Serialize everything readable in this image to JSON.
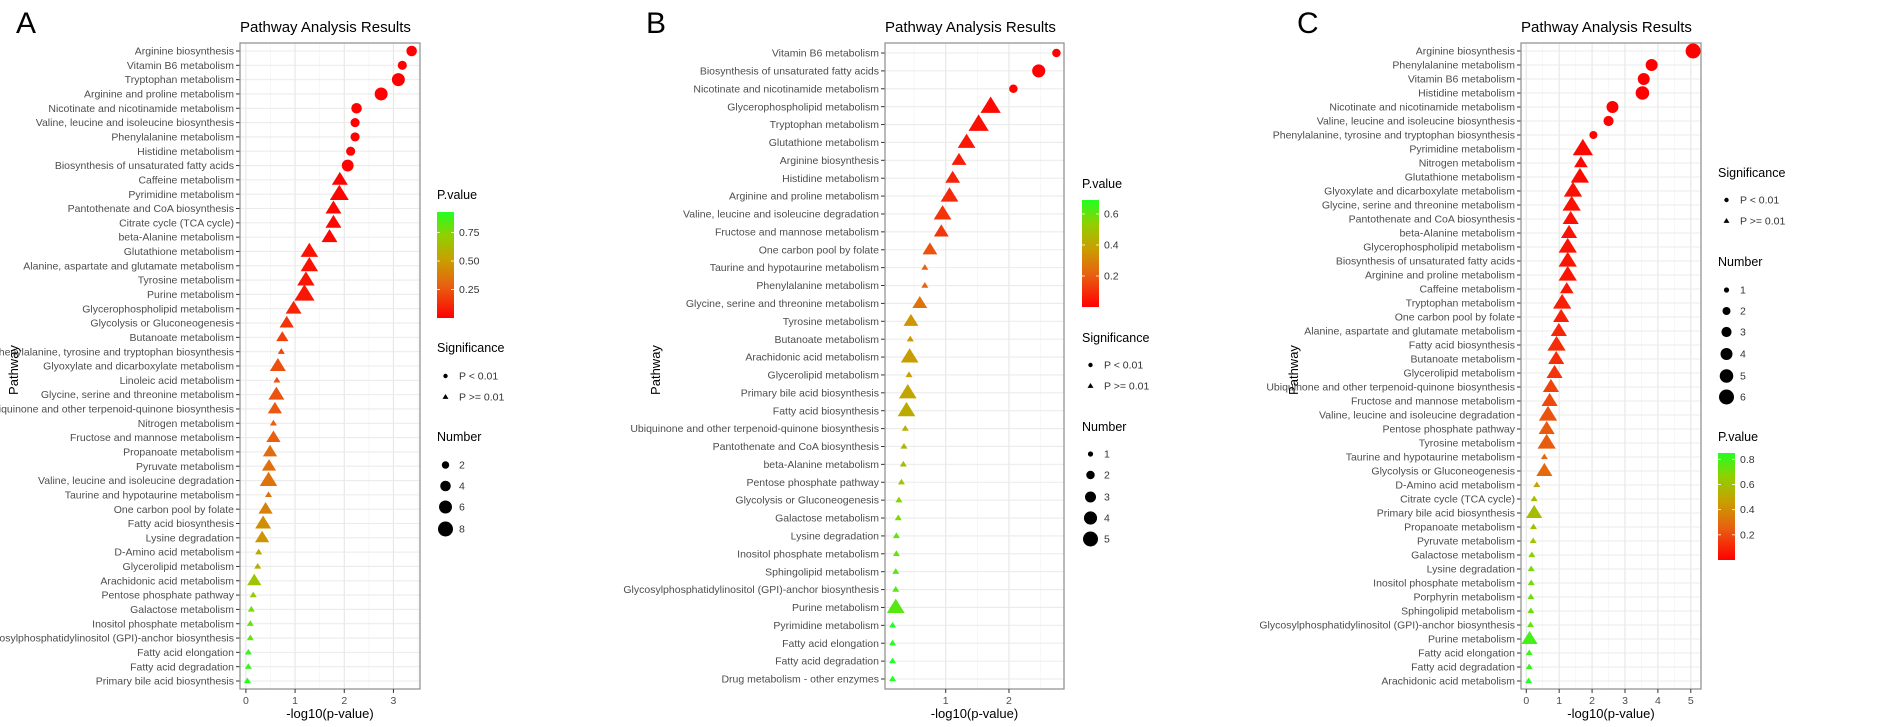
{
  "chart_data": [
    {
      "panel_label": "A",
      "type": "scatter",
      "title": "Pathway Analysis Results",
      "xlabel": "-log10(p-value)",
      "ylabel": "Pathway",
      "xlim": [
        -0.12,
        3.54
      ],
      "xticks": [
        "0",
        "1",
        "2",
        "3"
      ],
      "grid": true,
      "legend": {
        "pvalue_title": "P.value",
        "pvalue_ticks": [
          "0.75",
          "0.50",
          "0.25"
        ],
        "pvalue_tick_values": [
          0.75,
          0.5,
          0.25
        ],
        "pvalue_range": [
          0,
          0.93
        ],
        "significance_title": "Significance",
        "significance_labels": [
          "P < 0.01",
          "P >= 0.01"
        ],
        "number_title": "Number",
        "number_labels": [
          "2",
          "4",
          "6",
          "8"
        ],
        "number_values": [
          2,
          4,
          6,
          8
        ],
        "order": [
          "pvalue",
          "significance",
          "number"
        ]
      },
      "points": [
        {
          "pathway": "Arginine biosynthesis",
          "neglog10p": 3.37,
          "number": 4
        },
        {
          "pathway": "Vitamin B6 metabolism",
          "neglog10p": 3.18,
          "number": 3
        },
        {
          "pathway": "Tryptophan metabolism",
          "neglog10p": 3.1,
          "number": 6
        },
        {
          "pathway": "Arginine and proline metabolism",
          "neglog10p": 2.75,
          "number": 6
        },
        {
          "pathway": "Nicotinate and nicotinamide metabolism",
          "neglog10p": 2.25,
          "number": 4
        },
        {
          "pathway": "Valine, leucine and isoleucine biosynthesis",
          "neglog10p": 2.22,
          "number": 3
        },
        {
          "pathway": "Phenylalanine metabolism",
          "neglog10p": 2.22,
          "number": 3
        },
        {
          "pathway": "Histidine metabolism",
          "neglog10p": 2.13,
          "number": 3
        },
        {
          "pathway": "Biosynthesis of unsaturated fatty acids",
          "neglog10p": 2.07,
          "number": 5
        },
        {
          "pathway": "Caffeine metabolism",
          "neglog10p": 1.91,
          "number": 5
        },
        {
          "pathway": "Pyrimidine metabolism",
          "neglog10p": 1.9,
          "number": 7
        },
        {
          "pathway": "Pantothenate and CoA biosynthesis",
          "neglog10p": 1.78,
          "number": 5
        },
        {
          "pathway": "Citrate cycle (TCA cycle)",
          "neglog10p": 1.78,
          "number": 5
        },
        {
          "pathway": "beta-Alanine metabolism",
          "neglog10p": 1.7,
          "number": 5
        },
        {
          "pathway": "Glutathione metabolism",
          "neglog10p": 1.29,
          "number": 6
        },
        {
          "pathway": "Alanine, aspartate and glutamate metabolism",
          "neglog10p": 1.29,
          "number": 6
        },
        {
          "pathway": "Tyrosine metabolism",
          "neglog10p": 1.22,
          "number": 6
        },
        {
          "pathway": "Purine metabolism",
          "neglog10p": 1.19,
          "number": 8
        },
        {
          "pathway": "Glycerophospholipid metabolism",
          "neglog10p": 0.97,
          "number": 5
        },
        {
          "pathway": "Glycolysis or Gluconeogenesis",
          "neglog10p": 0.83,
          "number": 4
        },
        {
          "pathway": "Butanoate metabolism",
          "neglog10p": 0.74,
          "number": 3
        },
        {
          "pathway": "Phenylalanine, tyrosine and tryptophan biosynthesis",
          "neglog10p": 0.72,
          "number": 1
        },
        {
          "pathway": "Glyoxylate and dicarboxylate metabolism",
          "neglog10p": 0.65,
          "number": 5
        },
        {
          "pathway": "Linoleic acid metabolism",
          "neglog10p": 0.63,
          "number": 1
        },
        {
          "pathway": "Glycine, serine and threonine metabolism",
          "neglog10p": 0.62,
          "number": 5
        },
        {
          "pathway": "Ubiquinone and other terpenoid-quinone biosynthesis",
          "neglog10p": 0.59,
          "number": 4
        },
        {
          "pathway": "Nitrogen metabolism",
          "neglog10p": 0.56,
          "number": 1
        },
        {
          "pathway": "Fructose and mannose metabolism",
          "neglog10p": 0.56,
          "number": 4
        },
        {
          "pathway": "Propanoate metabolism",
          "neglog10p": 0.49,
          "number": 4
        },
        {
          "pathway": "Pyruvate metabolism",
          "neglog10p": 0.47,
          "number": 4
        },
        {
          "pathway": "Valine, leucine and isoleucine degradation",
          "neglog10p": 0.46,
          "number": 6
        },
        {
          "pathway": "Taurine and hypotaurine metabolism",
          "neglog10p": 0.46,
          "number": 1
        },
        {
          "pathway": "One carbon pool by folate",
          "neglog10p": 0.4,
          "number": 4
        },
        {
          "pathway": "Fatty acid biosynthesis",
          "neglog10p": 0.35,
          "number": 5
        },
        {
          "pathway": "Lysine degradation",
          "neglog10p": 0.33,
          "number": 4
        },
        {
          "pathway": "D-Amino acid metabolism",
          "neglog10p": 0.26,
          "number": 1
        },
        {
          "pathway": "Glycerolipid metabolism",
          "neglog10p": 0.24,
          "number": 1
        },
        {
          "pathway": "Arachidonic acid metabolism",
          "neglog10p": 0.17,
          "number": 4
        },
        {
          "pathway": "Pentose phosphate pathway",
          "neglog10p": 0.15,
          "number": 1
        },
        {
          "pathway": "Galactose metabolism",
          "neglog10p": 0.11,
          "number": 1
        },
        {
          "pathway": "Inositol phosphate metabolism",
          "neglog10p": 0.09,
          "number": 1
        },
        {
          "pathway": "Glycosylphosphatidylinositol (GPI)-anchor biosynthesis",
          "neglog10p": 0.09,
          "number": 1
        },
        {
          "pathway": "Fatty acid elongation",
          "neglog10p": 0.05,
          "number": 1
        },
        {
          "pathway": "Fatty acid degradation",
          "neglog10p": 0.05,
          "number": 1
        },
        {
          "pathway": "Primary bile acid biosynthesis",
          "neglog10p": 0.03,
          "number": 1
        }
      ]
    },
    {
      "panel_label": "B",
      "type": "scatter",
      "title": "Pathway Analysis Results",
      "xlabel": "-log10(p-value)",
      "ylabel": "Pathway",
      "xlim": [
        0.04,
        2.87
      ],
      "xticks": [
        "1",
        "2"
      ],
      "grid": true,
      "legend": {
        "pvalue_title": "P.value",
        "pvalue_ticks": [
          "0.6",
          "0.4",
          "0.2"
        ],
        "pvalue_tick_values": [
          0.6,
          0.4,
          0.2
        ],
        "pvalue_range": [
          0,
          0.69
        ],
        "significance_title": "Significance",
        "significance_labels": [
          "P < 0.01",
          "P >= 0.01"
        ],
        "number_title": "Number",
        "number_labels": [
          "1",
          "2",
          "3",
          "4",
          "5"
        ],
        "number_values": [
          1,
          2,
          3,
          4,
          5
        ],
        "order": [
          "pvalue",
          "significance",
          "number"
        ]
      },
      "points": [
        {
          "pathway": "Vitamin B6 metabolism",
          "neglog10p": 2.75,
          "number": 2
        },
        {
          "pathway": "Biosynthesis of unsaturated fatty acids",
          "neglog10p": 2.47,
          "number": 4
        },
        {
          "pathway": "Nicotinate and nicotinamide metabolism",
          "neglog10p": 2.07,
          "number": 2
        },
        {
          "pathway": "Glycerophospholipid metabolism",
          "neglog10p": 1.71,
          "number": 5
        },
        {
          "pathway": "Tryptophan metabolism",
          "neglog10p": 1.52,
          "number": 5
        },
        {
          "pathway": "Glutathione metabolism",
          "neglog10p": 1.33,
          "number": 4
        },
        {
          "pathway": "Arginine biosynthesis",
          "neglog10p": 1.21,
          "number": 3
        },
        {
          "pathway": "Histidine metabolism",
          "neglog10p": 1.11,
          "number": 3
        },
        {
          "pathway": "Arginine and proline metabolism",
          "neglog10p": 1.06,
          "number": 4
        },
        {
          "pathway": "Valine, leucine and isoleucine degradation",
          "neglog10p": 0.95,
          "number": 4
        },
        {
          "pathway": "Fructose and mannose metabolism",
          "neglog10p": 0.93,
          "number": 3
        },
        {
          "pathway": "One carbon pool by folate",
          "neglog10p": 0.75,
          "number": 3
        },
        {
          "pathway": "Taurine and hypotaurine metabolism",
          "neglog10p": 0.67,
          "number": 1
        },
        {
          "pathway": "Phenylalanine metabolism",
          "neglog10p": 0.67,
          "number": 1
        },
        {
          "pathway": "Glycine, serine and threonine metabolism",
          "neglog10p": 0.59,
          "number": 3
        },
        {
          "pathway": "Tyrosine metabolism",
          "neglog10p": 0.45,
          "number": 3
        },
        {
          "pathway": "Butanoate metabolism",
          "neglog10p": 0.44,
          "number": 1
        },
        {
          "pathway": "Arachidonic acid metabolism",
          "neglog10p": 0.43,
          "number": 4
        },
        {
          "pathway": "Glycerolipid metabolism",
          "neglog10p": 0.42,
          "number": 1
        },
        {
          "pathway": "Primary bile acid biosynthesis",
          "neglog10p": 0.4,
          "number": 4
        },
        {
          "pathway": "Fatty acid biosynthesis",
          "neglog10p": 0.38,
          "number": 4
        },
        {
          "pathway": "Ubiquinone and other terpenoid-quinone biosynthesis",
          "neglog10p": 0.36,
          "number": 1
        },
        {
          "pathway": "Pantothenate and CoA biosynthesis",
          "neglog10p": 0.34,
          "number": 1
        },
        {
          "pathway": "beta-Alanine metabolism",
          "neglog10p": 0.33,
          "number": 1
        },
        {
          "pathway": "Pentose phosphate pathway",
          "neglog10p": 0.3,
          "number": 1
        },
        {
          "pathway": "Glycolysis or Gluconeogenesis",
          "neglog10p": 0.26,
          "number": 1
        },
        {
          "pathway": "Galactose metabolism",
          "neglog10p": 0.25,
          "number": 1
        },
        {
          "pathway": "Lysine degradation",
          "neglog10p": 0.22,
          "number": 1
        },
        {
          "pathway": "Inositol phosphate metabolism",
          "neglog10p": 0.22,
          "number": 1
        },
        {
          "pathway": "Sphingolipid metabolism",
          "neglog10p": 0.21,
          "number": 1
        },
        {
          "pathway": "Glycosylphosphatidylinositol (GPI)-anchor biosynthesis",
          "neglog10p": 0.21,
          "number": 1
        },
        {
          "pathway": "Purine metabolism",
          "neglog10p": 0.21,
          "number": 4
        },
        {
          "pathway": "Pyrimidine metabolism",
          "neglog10p": 0.16,
          "number": 1
        },
        {
          "pathway": "Fatty acid elongation",
          "neglog10p": 0.16,
          "number": 1
        },
        {
          "pathway": "Fatty acid degradation",
          "neglog10p": 0.16,
          "number": 1
        },
        {
          "pathway": "Drug metabolism - other enzymes",
          "neglog10p": 0.16,
          "number": 1
        }
      ]
    },
    {
      "panel_label": "C",
      "type": "scatter",
      "title": "Pathway Analysis Results",
      "xlabel": "-log10(p-value)",
      "ylabel": "Pathway",
      "xlim": [
        -0.16,
        5.31
      ],
      "xticks": [
        "0",
        "1",
        "2",
        "3",
        "4",
        "5"
      ],
      "grid": true,
      "legend": {
        "pvalue_title": "P.value",
        "pvalue_ticks": [
          "0.8",
          "0.6",
          "0.4",
          "0.2"
        ],
        "pvalue_tick_values": [
          0.8,
          0.6,
          0.4,
          0.2
        ],
        "pvalue_range": [
          0,
          0.85
        ],
        "significance_title": "Significance",
        "significance_labels": [
          "P < 0.01",
          "P >= 0.01"
        ],
        "number_title": "Number",
        "number_labels": [
          "1",
          "2",
          "3",
          "4",
          "5",
          "6"
        ],
        "number_values": [
          1,
          2,
          3,
          4,
          5,
          6
        ],
        "order": [
          "significance",
          "number",
          "pvalue"
        ]
      },
      "points": [
        {
          "pathway": "Arginine biosynthesis",
          "neglog10p": 5.07,
          "number": 6
        },
        {
          "pathway": "Phenylalanine metabolism",
          "neglog10p": 3.81,
          "number": 4
        },
        {
          "pathway": "Vitamin B6 metabolism",
          "neglog10p": 3.57,
          "number": 4
        },
        {
          "pathway": "Histidine metabolism",
          "neglog10p": 3.53,
          "number": 5
        },
        {
          "pathway": "Nicotinate and nicotinamide metabolism",
          "neglog10p": 2.62,
          "number": 4
        },
        {
          "pathway": "Valine, leucine and isoleucine biosynthesis",
          "neglog10p": 2.5,
          "number": 3
        },
        {
          "pathway": "Phenylalanine, tyrosine and tryptophan biosynthesis",
          "neglog10p": 2.04,
          "number": 2
        },
        {
          "pathway": "Pyrimidine metabolism",
          "neglog10p": 1.72,
          "number": 6
        },
        {
          "pathway": "Nitrogen metabolism",
          "neglog10p": 1.66,
          "number": 3
        },
        {
          "pathway": "Glutathione metabolism",
          "neglog10p": 1.63,
          "number": 5
        },
        {
          "pathway": "Glyoxylate and dicarboxylate metabolism",
          "neglog10p": 1.42,
          "number": 5
        },
        {
          "pathway": "Glycine, serine and threonine metabolism",
          "neglog10p": 1.38,
          "number": 5
        },
        {
          "pathway": "Pantothenate and CoA biosynthesis",
          "neglog10p": 1.35,
          "number": 4
        },
        {
          "pathway": "beta-Alanine metabolism",
          "neglog10p": 1.3,
          "number": 4
        },
        {
          "pathway": "Glycerophospholipid metabolism",
          "neglog10p": 1.26,
          "number": 5
        },
        {
          "pathway": "Biosynthesis of unsaturated fatty acids",
          "neglog10p": 1.26,
          "number": 5
        },
        {
          "pathway": "Arginine and proline metabolism",
          "neglog10p": 1.26,
          "number": 5
        },
        {
          "pathway": "Caffeine metabolism",
          "neglog10p": 1.23,
          "number": 3
        },
        {
          "pathway": "Tryptophan metabolism",
          "neglog10p": 1.09,
          "number": 5
        },
        {
          "pathway": "One carbon pool by folate",
          "neglog10p": 1.06,
          "number": 4
        },
        {
          "pathway": "Alanine, aspartate and glutamate metabolism",
          "neglog10p": 0.99,
          "number": 4
        },
        {
          "pathway": "Fatty acid biosynthesis",
          "neglog10p": 0.92,
          "number": 5
        },
        {
          "pathway": "Butanoate metabolism",
          "neglog10p": 0.91,
          "number": 4
        },
        {
          "pathway": "Glycerolipid metabolism",
          "neglog10p": 0.86,
          "number": 4
        },
        {
          "pathway": "Ubiquinone and other terpenoid-quinone biosynthesis",
          "neglog10p": 0.75,
          "number": 4
        },
        {
          "pathway": "Fructose and mannose metabolism",
          "neglog10p": 0.71,
          "number": 4
        },
        {
          "pathway": "Valine, leucine and isoleucine degradation",
          "neglog10p": 0.66,
          "number": 5
        },
        {
          "pathway": "Pentose phosphate pathway",
          "neglog10p": 0.62,
          "number": 4
        },
        {
          "pathway": "Tyrosine metabolism",
          "neglog10p": 0.62,
          "number": 5
        },
        {
          "pathway": "Taurine and hypotaurine metabolism",
          "neglog10p": 0.55,
          "number": 1
        },
        {
          "pathway": "Glycolysis or Gluconeogenesis",
          "neglog10p": 0.55,
          "number": 4
        },
        {
          "pathway": "D-Amino acid metabolism",
          "neglog10p": 0.32,
          "number": 1
        },
        {
          "pathway": "Citrate cycle (TCA cycle)",
          "neglog10p": 0.24,
          "number": 1
        },
        {
          "pathway": "Primary bile acid biosynthesis",
          "neglog10p": 0.24,
          "number": 4
        },
        {
          "pathway": "Propanoate metabolism",
          "neglog10p": 0.22,
          "number": 1
        },
        {
          "pathway": "Pyruvate metabolism",
          "neglog10p": 0.21,
          "number": 1
        },
        {
          "pathway": "Galactose metabolism",
          "neglog10p": 0.17,
          "number": 1
        },
        {
          "pathway": "Lysine degradation",
          "neglog10p": 0.15,
          "number": 1
        },
        {
          "pathway": "Inositol phosphate metabolism",
          "neglog10p": 0.15,
          "number": 1
        },
        {
          "pathway": "Porphyrin metabolism",
          "neglog10p": 0.14,
          "number": 1
        },
        {
          "pathway": "Sphingolipid metabolism",
          "neglog10p": 0.14,
          "number": 1
        },
        {
          "pathway": "Glycosylphosphatidylinositol (GPI)-anchor biosynthesis",
          "neglog10p": 0.13,
          "number": 1
        },
        {
          "pathway": "Purine metabolism",
          "neglog10p": 0.1,
          "number": 4
        },
        {
          "pathway": "Fatty acid elongation",
          "neglog10p": 0.09,
          "number": 1
        },
        {
          "pathway": "Fatty acid degradation",
          "neglog10p": 0.09,
          "number": 1
        },
        {
          "pathway": "Arachidonic acid metabolism",
          "neglog10p": 0.07,
          "number": 1
        }
      ]
    }
  ]
}
